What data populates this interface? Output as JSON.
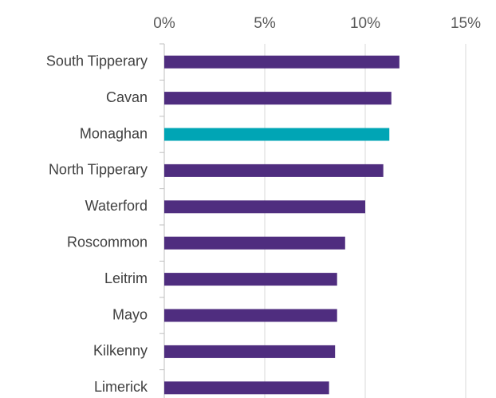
{
  "chart_data": {
    "type": "bar",
    "orientation": "horizontal",
    "categories": [
      "South Tipperary",
      "Cavan",
      "Monaghan",
      "North Tipperary",
      "Waterford",
      "Roscommon",
      "Leitrim",
      "Mayo",
      "Kilkenny",
      "Limerick"
    ],
    "values": [
      11.7,
      11.3,
      11.2,
      10.9,
      10.0,
      9.0,
      8.6,
      8.6,
      8.5,
      8.2
    ],
    "colors": [
      "#4f2d7f",
      "#4f2d7f",
      "#00a5b5",
      "#4f2d7f",
      "#4f2d7f",
      "#4f2d7f",
      "#4f2d7f",
      "#4f2d7f",
      "#4f2d7f",
      "#4f2d7f"
    ],
    "xlim": [
      0,
      15
    ],
    "xticks": [
      {
        "value": 0,
        "label": "0%"
      },
      {
        "value": 5,
        "label": "5%"
      },
      {
        "value": 10,
        "label": "10%"
      },
      {
        "value": 15,
        "label": "15%"
      }
    ],
    "grid": true
  }
}
